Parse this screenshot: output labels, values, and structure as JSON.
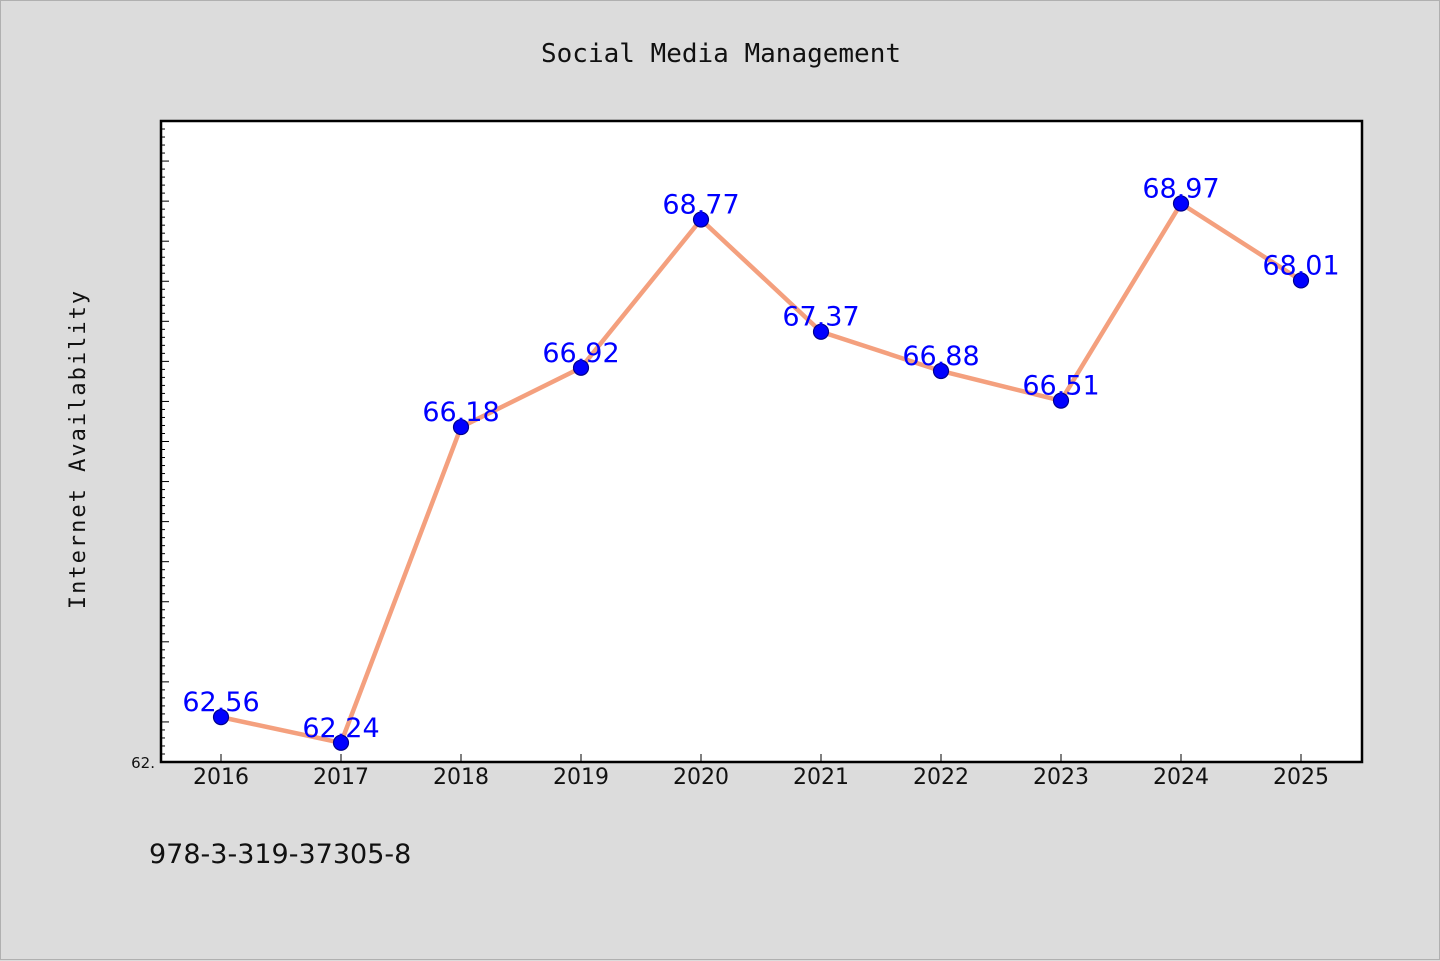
{
  "chart_data": {
    "type": "line",
    "title": "Social Media Management",
    "xlabel": "",
    "ylabel": "Internet Availability",
    "categories": [
      "2016",
      "2017",
      "2018",
      "2019",
      "2020",
      "2021",
      "2022",
      "2023",
      "2024",
      "2025"
    ],
    "series": [
      {
        "values": [
          62.56,
          62.24,
          66.18,
          66.92,
          68.77,
          67.37,
          66.88,
          66.51,
          68.97,
          68.01
        ]
      }
    ],
    "ylim": [
      62.0,
      70.0
    ],
    "y_tick_labels_visible": [
      "62."
    ],
    "data_labels": [
      "62.56",
      "62.24",
      "66.18",
      "66.92",
      "68.77",
      "67.37",
      "66.88",
      "66.51",
      "68.97",
      "68.01"
    ],
    "grid": false,
    "legend": "none",
    "colors": {
      "line": "#f4a07e",
      "marker": "#0000ff",
      "data_label": "#0000ff",
      "plot_background": "#ffffff",
      "figure_background": "#dcdcdc"
    }
  },
  "footer": {
    "isbn": "978-3-319-37305-8"
  }
}
